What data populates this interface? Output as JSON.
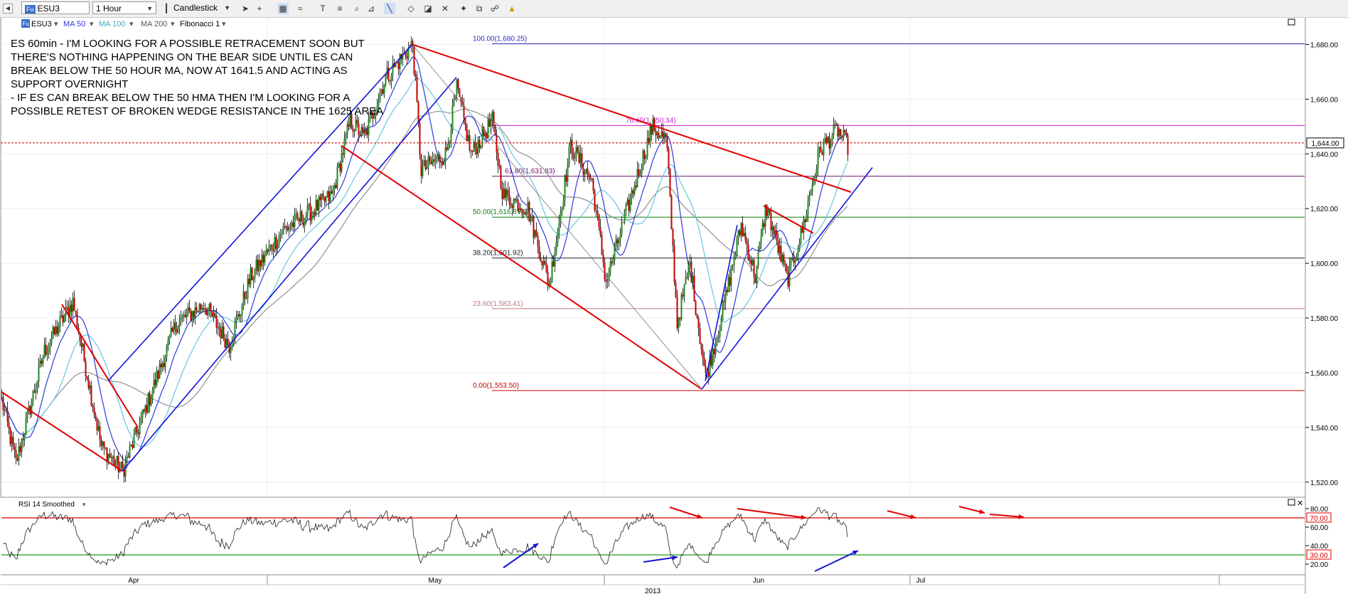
{
  "toolbar": {
    "symbol": "ESU3",
    "interval": "1 Hour",
    "chart_style": "Candlestick",
    "icons": [
      "pointer-icon",
      "crosshair-icon",
      "grid-icon",
      "indicator-icon",
      "text-icon",
      "zoom-icon",
      "bars-icon",
      "trendline-icon",
      "eraser-icon",
      "fibonacci-icon",
      "tools-icon",
      "alert-icon",
      "link-icon",
      "brush-icon"
    ]
  },
  "legend": {
    "symbol": "ESU3",
    "ma50": "MA 50",
    "ma100": "MA 100",
    "ma200": "MA 200",
    "fib": "Fibonacci 1"
  },
  "colors": {
    "up": "#1f8a1f",
    "down": "#c00000",
    "ma50": "#2b3bd6",
    "ma100": "#66c8dc",
    "ma200": "#909090",
    "trend_red": "#e00000",
    "trend_blue": "#1414d8",
    "rsi": "#202020"
  },
  "annotation": [
    "ES 60min - I'M LOOKING FOR A POSSIBLE RETRACEMENT SOON BUT",
    "THERE'S NOTHING HAPPENING ON THE BEAR SIDE UNTIL ES CAN",
    "BREAK BELOW THE 50 HOUR MA, NOW AT 1641.5 AND ACTING AS",
    "SUPPORT OVERNIGHT",
    "- IF ES CAN BREAK BELOW THE 50 HMA THEN I'M LOOKING FOR A",
    "POSSIBLE RETEST OF BROKEN WEDGE RESISTANCE IN THE 1625 AREA"
  ],
  "chart_data": {
    "type": "line",
    "series_kind": "candlestick",
    "interval": "1 Hour",
    "ylim": [
      1515,
      1690
    ],
    "yticks": [
      1520,
      1540,
      1560,
      1580,
      1600,
      1620,
      1640,
      1660,
      1680
    ],
    "ytick_labels": [
      "1,520.00",
      "1,540.00",
      "1,560.00",
      "1,580.00",
      "1,600.00",
      "1,620.00",
      "1,640.00",
      "1,660.00",
      "1,680.00"
    ],
    "last_price": 1644.0,
    "last_price_label": "1,644.00",
    "x_labels": [
      "Apr",
      "May",
      "Jun",
      "Jul"
    ],
    "year_label": "2013",
    "price_path": [
      [
        0,
        1550
      ],
      [
        20,
        1527
      ],
      [
        60,
        1568
      ],
      [
        100,
        1586
      ],
      [
        140,
        1533
      ],
      [
        170,
        1524
      ],
      [
        215,
        1556
      ],
      [
        245,
        1578
      ],
      [
        285,
        1585
      ],
      [
        320,
        1570
      ],
      [
        350,
        1595
      ],
      [
        395,
        1612
      ],
      [
        430,
        1618
      ],
      [
        465,
        1625
      ],
      [
        490,
        1652
      ],
      [
        510,
        1646
      ],
      [
        540,
        1668
      ],
      [
        578,
        1680
      ],
      [
        590,
        1634
      ],
      [
        625,
        1640
      ],
      [
        640,
        1664
      ],
      [
        660,
        1640
      ],
      [
        690,
        1652
      ],
      [
        705,
        1625
      ],
      [
        740,
        1620
      ],
      [
        770,
        1592
      ],
      [
        800,
        1643
      ],
      [
        830,
        1630
      ],
      [
        850,
        1593
      ],
      [
        880,
        1620
      ],
      [
        915,
        1650
      ],
      [
        935,
        1645
      ],
      [
        950,
        1578
      ],
      [
        968,
        1600
      ],
      [
        990,
        1558
      ],
      [
        1010,
        1578
      ],
      [
        1040,
        1614
      ],
      [
        1060,
        1595
      ],
      [
        1075,
        1621
      ],
      [
        1105,
        1594
      ],
      [
        1125,
        1611
      ],
      [
        1150,
        1641
      ],
      [
        1175,
        1649
      ],
      [
        1190,
        1643
      ]
    ],
    "fibonacci": [
      {
        "label": "100.00(1,680.25)",
        "value": 1680.25,
        "color": "#3030c0"
      },
      {
        "label": "76.40(1,650.34)",
        "value": 1650.34,
        "color": "#cc22cc"
      },
      {
        "label": "61.80(1,631.83)",
        "value": 1631.83,
        "color": "#701070"
      },
      {
        "label": "50.00(1,616.87)",
        "value": 1616.87,
        "color": "#108010"
      },
      {
        "label": "38.20(1,601.92)",
        "value": 1601.92,
        "color": "#202020"
      },
      {
        "label": "23.60(1,583.41)",
        "value": 1583.41,
        "color": "#c07878"
      },
      {
        "label": "0.00(1,553.50)",
        "value": 1553.5,
        "color": "#cc0000"
      }
    ],
    "trendlines_red": [
      [
        [
          0,
          1553
        ],
        [
          170,
          1524
        ]
      ],
      [
        [
          85,
          1585
        ],
        [
          192,
          1540
        ]
      ],
      [
        [
          478,
          1643
        ],
        [
          770,
          1592
        ]
      ],
      [
        [
          770,
          1592
        ],
        [
          985,
          1554
        ]
      ],
      [
        [
          578,
          1680
        ],
        [
          1195,
          1626
        ]
      ],
      [
        [
          1072,
          1621
        ],
        [
          1142,
          1611
        ]
      ]
    ],
    "trendlines_blue": [
      [
        [
          150,
          1557
        ],
        [
          578,
          1680
        ]
      ],
      [
        [
          170,
          1524
        ],
        [
          640,
          1668
        ]
      ],
      [
        [
          985,
          1554
        ],
        [
          1225,
          1635
        ]
      ],
      [
        [
          990,
          1557
        ],
        [
          1035,
          1614
        ]
      ]
    ],
    "trendline_grey": [
      [
        578,
        1680
      ],
      [
        985,
        1554
      ]
    ],
    "rsi": {
      "title": "RSI 14 Smoothed",
      "ylim": [
        10,
        90
      ],
      "yticks": [
        20,
        40,
        60,
        80
      ],
      "ytick_labels": [
        "20.00",
        "40.00",
        "60.00",
        "80.00"
      ],
      "upper": 70,
      "lower": 30,
      "upper_label": "70.00",
      "lower_label": "30.00"
    }
  }
}
